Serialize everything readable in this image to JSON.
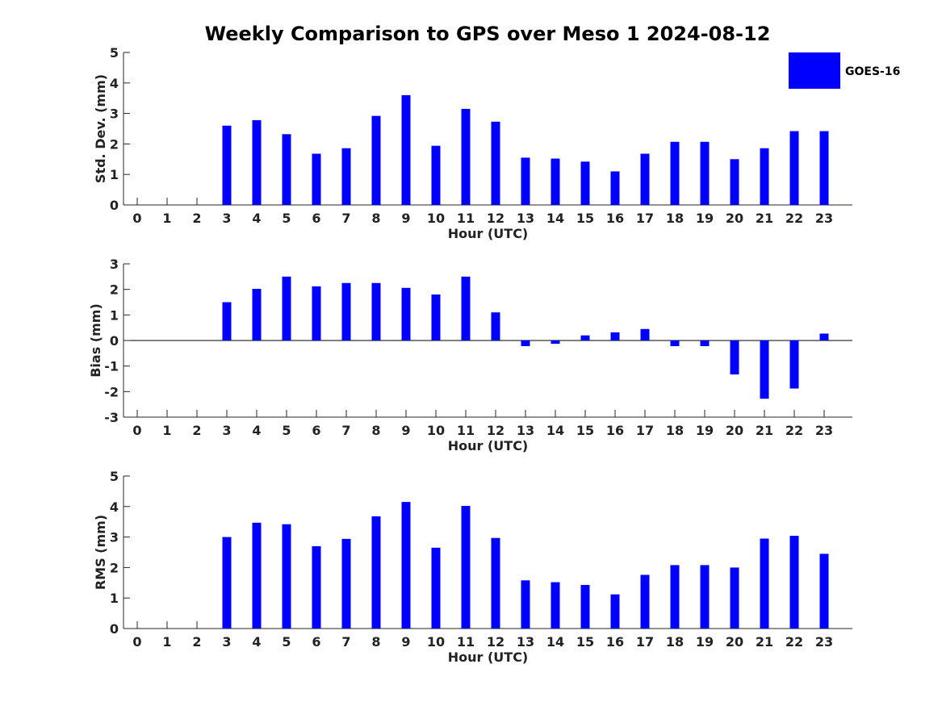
{
  "title": "Weekly Comparison to GPS over Meso 1 2024-08-12",
  "legend": {
    "label": "GOES-16",
    "color": "#0000ff"
  },
  "colors": {
    "bar": "#0000ff",
    "axis": "#262626"
  },
  "chart_data": [
    {
      "type": "bar",
      "series_name": "GOES-16",
      "ylabel": "Std. Dev. (mm)",
      "xlabel": "Hour (UTC)",
      "ylim": [
        0,
        5
      ],
      "yticks": [
        0,
        1,
        2,
        3,
        4,
        5
      ],
      "categories": [
        "0",
        "1",
        "2",
        "3",
        "4",
        "5",
        "6",
        "7",
        "8",
        "9",
        "10",
        "11",
        "12",
        "13",
        "14",
        "15",
        "16",
        "17",
        "18",
        "19",
        "20",
        "21",
        "22",
        "23"
      ],
      "values": [
        null,
        null,
        null,
        2.6,
        2.78,
        2.32,
        1.68,
        1.86,
        2.92,
        3.6,
        1.94,
        3.15,
        2.73,
        1.55,
        1.52,
        1.42,
        1.1,
        1.68,
        2.07,
        2.07,
        1.5,
        1.86,
        2.42,
        2.42
      ]
    },
    {
      "type": "bar",
      "series_name": "GOES-16",
      "ylabel": "Bias (mm)",
      "xlabel": "Hour (UTC)",
      "ylim": [
        -3,
        3
      ],
      "yticks": [
        -3,
        -2,
        -1,
        0,
        1,
        2,
        3
      ],
      "zero_line": true,
      "categories": [
        "0",
        "1",
        "2",
        "3",
        "4",
        "5",
        "6",
        "7",
        "8",
        "9",
        "10",
        "11",
        "12",
        "13",
        "14",
        "15",
        "16",
        "17",
        "18",
        "19",
        "20",
        "21",
        "22",
        "23"
      ],
      "values": [
        null,
        null,
        null,
        1.5,
        2.02,
        2.5,
        2.12,
        2.25,
        2.25,
        2.06,
        1.8,
        2.5,
        1.1,
        -0.22,
        -0.13,
        0.2,
        0.32,
        0.45,
        -0.22,
        -0.22,
        -1.33,
        -2.28,
        -1.88,
        0.27
      ]
    },
    {
      "type": "bar",
      "series_name": "GOES-16",
      "ylabel": "RMS (mm)",
      "xlabel": "Hour (UTC)",
      "ylim": [
        0,
        5
      ],
      "yticks": [
        0,
        1,
        2,
        3,
        4,
        5
      ],
      "categories": [
        "0",
        "1",
        "2",
        "3",
        "4",
        "5",
        "6",
        "7",
        "8",
        "9",
        "10",
        "11",
        "12",
        "13",
        "14",
        "15",
        "16",
        "17",
        "18",
        "19",
        "20",
        "21",
        "22",
        "23"
      ],
      "values": [
        null,
        null,
        null,
        3.0,
        3.47,
        3.42,
        2.7,
        2.94,
        3.68,
        4.15,
        2.65,
        4.02,
        2.97,
        1.58,
        1.52,
        1.43,
        1.12,
        1.76,
        2.08,
        2.08,
        2.0,
        2.95,
        3.04,
        2.45
      ]
    }
  ]
}
